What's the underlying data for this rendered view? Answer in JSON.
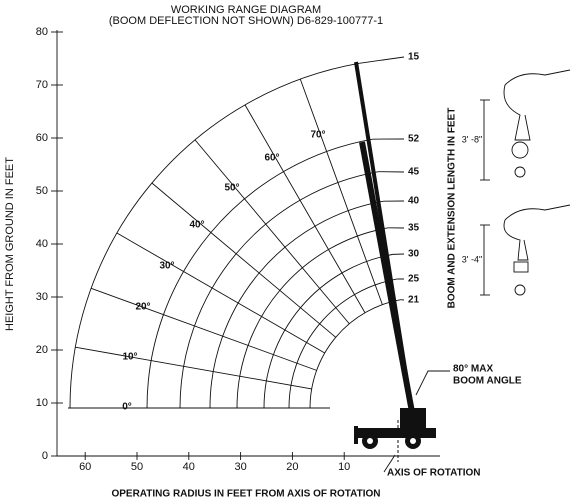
{
  "title": "WORKING RANGE DIAGRAM",
  "subtitle": "(BOOM DEFLECTION NOT SHOWN)   D6-829-100777-1",
  "x_axis": {
    "label": "OPERATING RADIUS IN FEET FROM AXIS OF ROTATION",
    "ticks": [
      60,
      50,
      40,
      30,
      20,
      10
    ]
  },
  "y_axis": {
    "label": "HEIGHT FROM GROUND IN FEET",
    "ticks": [
      0,
      10,
      20,
      30,
      40,
      50,
      60,
      70,
      80
    ]
  },
  "boom_length_label": "BOOM AND EXTENSION LENGTH IN FEET",
  "boom_lengths": [
    15,
    52,
    45,
    40,
    35,
    30,
    25,
    21
  ],
  "angles": [
    "0°",
    "10°",
    "20°",
    "30°",
    "40°",
    "50°",
    "60°",
    "70°"
  ],
  "max_angle": [
    "80° MAX",
    "BOOM ANGLE"
  ],
  "axis_of_rotation": "AXIS OF ROTATION",
  "hook_dims": [
    "3' -8\"",
    "3' -4\""
  ]
}
